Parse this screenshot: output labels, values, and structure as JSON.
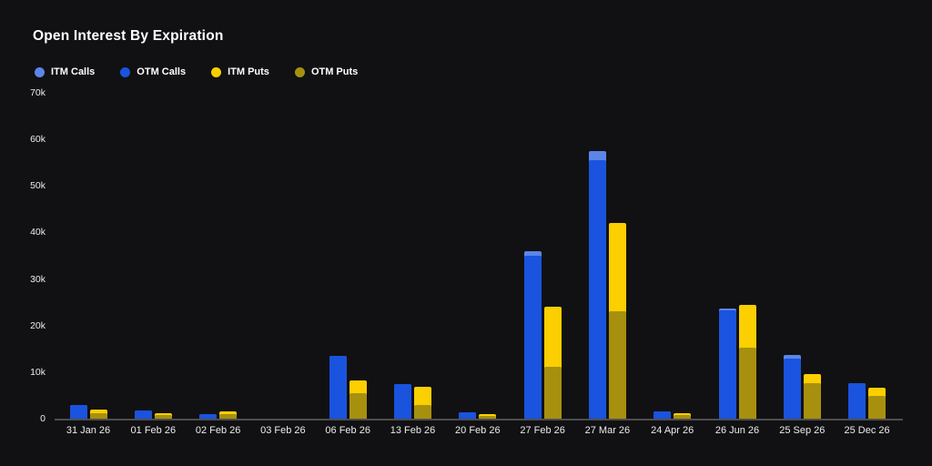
{
  "page": {
    "background": "#111113"
  },
  "header": {
    "title": "Open Interest By Expiration"
  },
  "legend": {
    "items": [
      {
        "label": "ITM Calls",
        "color": "#5b86e8"
      },
      {
        "label": "OTM Calls",
        "color": "#1a53dd"
      },
      {
        "label": "ITM Puts",
        "color": "#fccf00"
      },
      {
        "label": "OTM Puts",
        "color": "#a8900f"
      }
    ]
  },
  "chart_data": {
    "type": "bar",
    "title": "Open Interest By Expiration",
    "xlabel": "",
    "ylabel": "",
    "ylim": [
      0,
      70000
    ],
    "ytick_labels": [
      "70k",
      "60k",
      "50k",
      "40k",
      "30k",
      "20k",
      "10k",
      "0"
    ],
    "ytick_values": [
      70000,
      60000,
      50000,
      40000,
      30000,
      20000,
      10000,
      0
    ],
    "grid": false,
    "legend_position": "top-left",
    "bar_layout": "calls and puts side by side per category; ITM bar drawn behind, OTM bar overlaid in front of same-group bar",
    "categories": [
      "31 Jan 26",
      "01 Feb 26",
      "02 Feb 26",
      "03 Feb 26",
      "06 Feb 26",
      "13 Feb 26",
      "20 Feb 26",
      "27 Feb 26",
      "27 Mar 26",
      "24 Apr 26",
      "26 Jun 26",
      "25 Sep 26",
      "25 Dec 26"
    ],
    "series": [
      {
        "name": "ITM Calls",
        "color": "#5b86e8",
        "column": "calls",
        "layer": "back",
        "values": [
          3000,
          1800,
          1000,
          0,
          13400,
          7500,
          1300,
          36000,
          57500,
          1600,
          23700,
          13700,
          7600
        ]
      },
      {
        "name": "OTM Calls",
        "color": "#1a53dd",
        "column": "calls",
        "layer": "front",
        "values": [
          3000,
          1800,
          1000,
          0,
          13400,
          7500,
          1300,
          35000,
          55500,
          1600,
          23200,
          12900,
          7600
        ]
      },
      {
        "name": "ITM Puts",
        "color": "#fccf00",
        "column": "puts",
        "layer": "back",
        "values": [
          2000,
          1200,
          1500,
          0,
          8300,
          6800,
          900,
          24000,
          42000,
          1200,
          24500,
          9600,
          6700
        ]
      },
      {
        "name": "OTM Puts",
        "color": "#a8900f",
        "column": "puts",
        "layer": "front",
        "values": [
          1200,
          800,
          900,
          0,
          5400,
          3000,
          500,
          11200,
          23000,
          700,
          15200,
          7700,
          4900
        ]
      }
    ]
  }
}
